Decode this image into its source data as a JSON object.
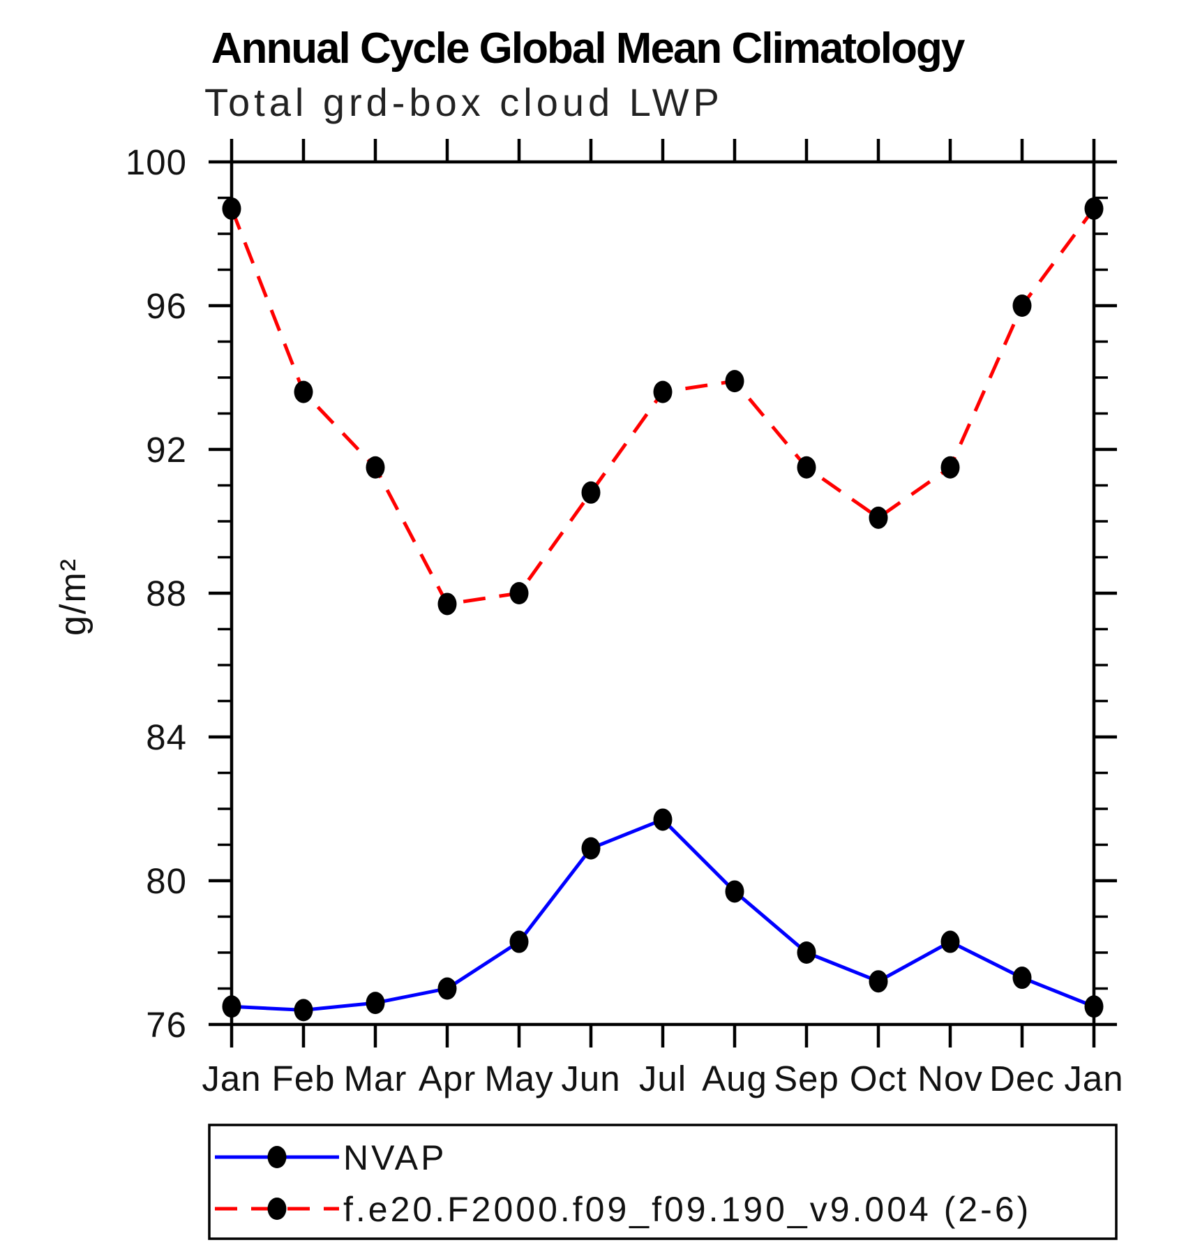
{
  "title": "Annual Cycle Global Mean Climatology",
  "subtitle": "Total grd-box cloud LWP",
  "ylabel": "g/m²",
  "colors": {
    "nvap_line": "#0000ff",
    "model_line": "#ff0000",
    "marker": "#000000",
    "axis": "#000000"
  },
  "chart_data": {
    "type": "line",
    "categories": [
      "Jan",
      "Feb",
      "Mar",
      "Apr",
      "May",
      "Jun",
      "Jul",
      "Aug",
      "Sep",
      "Oct",
      "Nov",
      "Dec",
      "Jan"
    ],
    "ylim": [
      76,
      100
    ],
    "ytick_major_step": 4,
    "ytick_minor_step": 1,
    "ytick_labels": [
      "76",
      "80",
      "84",
      "88",
      "92",
      "96",
      "100"
    ],
    "grid": false,
    "legend_position": "bottom-left-box",
    "series": [
      {
        "name": "NVAP",
        "color": "#0000ff",
        "line_style": "solid",
        "marker": "filled-circle",
        "marker_color": "#000000",
        "values": [
          76.5,
          76.4,
          76.6,
          77.0,
          78.3,
          80.9,
          81.7,
          79.7,
          78.0,
          77.2,
          78.3,
          77.3,
          76.5
        ]
      },
      {
        "name": "f.e20.F2000.f09_f09.190_v9.004 (2-6)",
        "color": "#ff0000",
        "line_style": "dashed",
        "marker": "filled-circle",
        "marker_color": "#000000",
        "values": [
          98.7,
          93.6,
          91.5,
          87.7,
          88.0,
          90.8,
          93.6,
          93.9,
          91.5,
          90.1,
          91.5,
          96.0,
          98.7
        ]
      }
    ]
  }
}
